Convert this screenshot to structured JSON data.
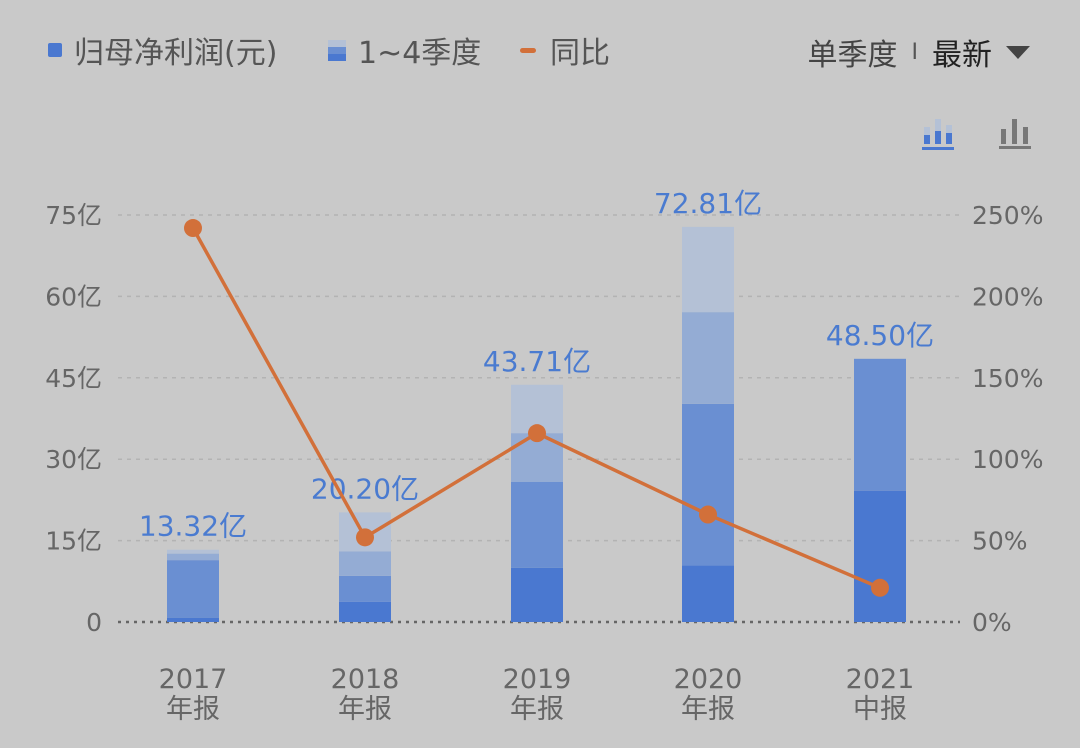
{
  "legend": {
    "net_profit": "归母净利润(元)",
    "quarters": "1~4季度",
    "yoy": "同比"
  },
  "controls": {
    "period": "单季度",
    "separator": "I",
    "sort": "最新",
    "icons": [
      "stacked-bar-chart-icon",
      "bar-chart-icon"
    ]
  },
  "colors": {
    "q1": "#4a78d0",
    "q2": "#6a8fd2",
    "q3": "#94acd4",
    "q4": "#b4c1d6",
    "line": "#d2703a",
    "value_label": "#4a7bd0"
  },
  "chart_data": {
    "type": "bar",
    "stacked": true,
    "categories": [
      [
        "2017",
        "年报"
      ],
      [
        "2018",
        "年报"
      ],
      [
        "2019",
        "年报"
      ],
      [
        "2020",
        "年报"
      ],
      [
        "2021",
        "中报"
      ]
    ],
    "totals_label": [
      "13.32亿",
      "20.20亿",
      "43.71亿",
      "72.81亿",
      "48.50亿"
    ],
    "series": [
      {
        "name": "Q1",
        "values": [
          0.8,
          3.7,
          10.0,
          10.4,
          24.2
        ]
      },
      {
        "name": "Q2",
        "values": [
          10.6,
          4.8,
          15.8,
          29.8,
          24.3
        ]
      },
      {
        "name": "Q3",
        "values": [
          1.2,
          4.5,
          9.0,
          16.9,
          0
        ]
      },
      {
        "name": "Q4",
        "values": [
          0.72,
          7.2,
          8.91,
          15.71,
          0
        ]
      }
    ],
    "line": {
      "name": "同比",
      "values": [
        242,
        52,
        116,
        66,
        21
      ],
      "axis": "right"
    },
    "left_axis": {
      "ticks": [
        "0",
        "15亿",
        "30亿",
        "45亿",
        "60亿",
        "75亿"
      ],
      "ylim": [
        0,
        75
      ]
    },
    "right_axis": {
      "ticks": [
        "0%",
        "50%",
        "100%",
        "150%",
        "200%",
        "250%"
      ],
      "ylim": [
        0,
        250
      ]
    },
    "grid": true
  }
}
